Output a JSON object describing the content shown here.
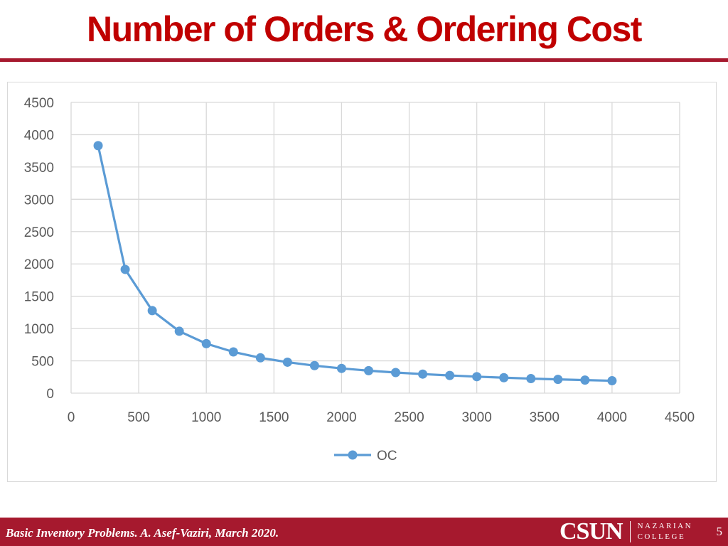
{
  "slide": {
    "title": "Number of Orders & Ordering Cost",
    "footer": "Basic Inventory Problems. A. Asef-Vaziri, March 2020.",
    "logo_primary": "CSUN",
    "logo_secondary_line1": "NAZARIAN",
    "logo_secondary_line2": "COLLEGE",
    "page_number": "5",
    "colors": {
      "title": "#c00000",
      "bar": "#a6192e",
      "series": "#5b9bd5"
    }
  },
  "chart_data": {
    "type": "scatter",
    "mode": "lines+markers",
    "xlim": [
      0,
      4500
    ],
    "ylim": [
      0,
      4500
    ],
    "x_ticks": [
      0,
      500,
      1000,
      1500,
      2000,
      2500,
      3000,
      3500,
      4000,
      4500
    ],
    "y_ticks": [
      0,
      500,
      1000,
      1500,
      2000,
      2500,
      3000,
      3500,
      4000,
      4500
    ],
    "grid": true,
    "legend_position": "bottom",
    "series": [
      {
        "name": "OC",
        "color": "#5b9bd5",
        "x": [
          200,
          400,
          600,
          800,
          1000,
          1200,
          1400,
          1600,
          1800,
          2000,
          2200,
          2400,
          2600,
          2800,
          3000,
          3200,
          3400,
          3600,
          3800,
          4000
        ],
        "y": [
          3830,
          1915,
          1277,
          958,
          766,
          638,
          547,
          479,
          426,
          383,
          348,
          319,
          295,
          274,
          255,
          239,
          225,
          213,
          202,
          192
        ]
      }
    ]
  }
}
